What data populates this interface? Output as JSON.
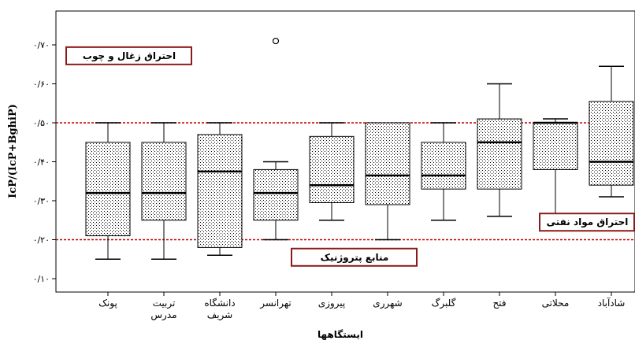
{
  "chart_data": {
    "type": "box",
    "xlabel": "ایستگاهها",
    "ylabel": "IcP/(IcP+BghiP)",
    "ylim": [
      0.05,
      0.77
    ],
    "yticks": [
      {
        "value": 0.1,
        "label": "۰/۱۰"
      },
      {
        "value": 0.2,
        "label": "۰/۲۰"
      },
      {
        "value": 0.3,
        "label": "۰/۳۰"
      },
      {
        "value": 0.4,
        "label": "۰/۴۰"
      },
      {
        "value": 0.5,
        "label": "۰/۵۰"
      },
      {
        "value": 0.6,
        "label": "۰/۶۰"
      },
      {
        "value": 0.7,
        "label": "۰/۷۰"
      }
    ],
    "boxes": [
      {
        "label": "پونک",
        "whisker_low": 0.15,
        "q1": 0.21,
        "median": 0.32,
        "q3": 0.45,
        "whisker_high": 0.5,
        "outliers": []
      },
      {
        "label": "تربیت مدرس",
        "whisker_low": 0.15,
        "q1": 0.25,
        "median": 0.32,
        "q3": 0.45,
        "whisker_high": 0.5,
        "outliers": []
      },
      {
        "label": "دانشگاه شریف",
        "whisker_low": 0.16,
        "q1": 0.18,
        "median": 0.375,
        "q3": 0.47,
        "whisker_high": 0.5,
        "outliers": []
      },
      {
        "label": "تهرانسر",
        "whisker_low": 0.2,
        "q1": 0.25,
        "median": 0.32,
        "q3": 0.38,
        "whisker_high": 0.4,
        "outliers": [
          0.71
        ]
      },
      {
        "label": "پیروزی",
        "whisker_low": 0.25,
        "q1": 0.295,
        "median": 0.34,
        "q3": 0.465,
        "whisker_high": 0.5,
        "outliers": []
      },
      {
        "label": "شهرری",
        "whisker_low": 0.2,
        "q1": 0.29,
        "median": 0.365,
        "q3": 0.5,
        "whisker_high": 0.5,
        "outliers": []
      },
      {
        "label": "گلبرگ",
        "whisker_low": 0.25,
        "q1": 0.33,
        "median": 0.365,
        "q3": 0.45,
        "whisker_high": 0.5,
        "outliers": []
      },
      {
        "label": "فتح",
        "whisker_low": 0.26,
        "q1": 0.33,
        "median": 0.45,
        "q3": 0.51,
        "whisker_high": 0.6,
        "outliers": []
      },
      {
        "label": "محلاتی",
        "whisker_low": 0.26,
        "q1": 0.38,
        "median": 0.5,
        "q3": 0.5,
        "whisker_high": 0.51,
        "outliers": []
      },
      {
        "label": "شادآباد",
        "whisker_low": 0.31,
        "q1": 0.34,
        "median": 0.4,
        "q3": 0.555,
        "whisker_high": 0.645,
        "outliers": []
      }
    ],
    "reference_lines": [
      0.5,
      0.2
    ],
    "annotations": [
      {
        "text": "احتراق زغال و چوب",
        "y": 0.672
      },
      {
        "text": "احتراق مواد نفتی",
        "y": 0.245
      },
      {
        "text": "منابع پتروژنیک",
        "y": 0.155
      }
    ],
    "colors": {
      "box_fill": "#ffffff",
      "box_stipple": "#000000",
      "reference_line": "#c00000",
      "annotation_border": "#8b1a1a"
    }
  }
}
